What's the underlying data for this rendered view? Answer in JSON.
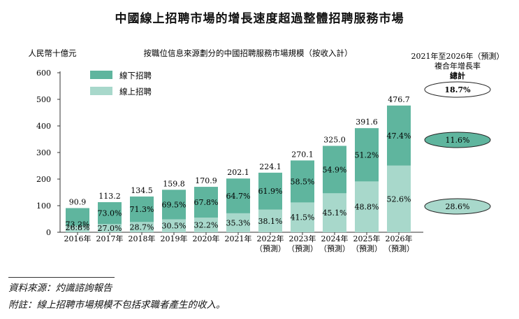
{
  "chart_data": {
    "type": "bar",
    "title": "中國線上招聘市場的增長速度超過整體招聘服務市場",
    "subtitle": "按職位信息來源劃分的中國招聘服務市場規模（按收入計）",
    "ylabel": "人民幣十億元",
    "ylim": [
      0,
      600
    ],
    "yticks": [
      "0",
      "100",
      "200",
      "300",
      "400",
      "500",
      "600"
    ],
    "stacked": true,
    "categories": [
      [
        "2016年"
      ],
      [
        "2017年"
      ],
      [
        "2018年"
      ],
      [
        "2019年"
      ],
      [
        "2020年"
      ],
      [
        "2021年"
      ],
      [
        "2022年",
        "（預測）"
      ],
      [
        "2023年",
        "（預測）"
      ],
      [
        "2024年",
        "（預測）"
      ],
      [
        "2025年",
        "（預測）"
      ],
      [
        "2026年",
        "（預測）"
      ]
    ],
    "totals": [
      90.9,
      113.2,
      134.5,
      159.8,
      170.9,
      202.1,
      224.1,
      270.1,
      325.0,
      391.6,
      476.7
    ],
    "total_labels": [
      "90.9",
      "113.2",
      "134.5",
      "159.8",
      "170.9",
      "202.1",
      "224.1",
      "270.1",
      "325.0",
      "391.6",
      "476.7"
    ],
    "series": [
      {
        "name": "線上招聘",
        "color": "#a8d8cb",
        "share": [
          26.8,
          27.0,
          28.7,
          30.5,
          32.2,
          35.3,
          38.1,
          41.5,
          45.1,
          48.8,
          52.6
        ],
        "labels": [
          "26.8%",
          "27.0%",
          "28.7%",
          "30.5%",
          "32.2%",
          "35.3%",
          "38.1%",
          "41.5%",
          "45.1%",
          "48.8%",
          "52.6%"
        ]
      },
      {
        "name": "線下招聘",
        "color": "#5fb59e",
        "share": [
          73.2,
          73.0,
          71.3,
          69.5,
          67.8,
          64.7,
          61.9,
          58.5,
          54.9,
          51.2,
          47.4
        ],
        "labels": [
          "73.2%",
          "73.0%",
          "71.3%",
          "69.5%",
          "67.8%",
          "64.7%",
          "61.9%",
          "58.5%",
          "54.9%",
          "51.2%",
          "47.4%"
        ]
      }
    ],
    "legend_order": [
      "線下招聘",
      "線上招聘"
    ],
    "legend_position": "top-left",
    "cagr": {
      "header": [
        "2021年至2026年（預測）",
        "複合年增長率"
      ],
      "total_label": "總計",
      "total": "18.7%",
      "offline": "11.6%",
      "online": "28.6%"
    }
  },
  "footer": {
    "source": "資料來源：灼識諮詢報告",
    "note": "附註：線上招聘市場規模不包括求職者產生的收入。"
  },
  "colors": {
    "offline": "#5fb59e",
    "online": "#a8d8cb",
    "ellipse_dark": "#5fb59e",
    "axis": "#333333"
  }
}
